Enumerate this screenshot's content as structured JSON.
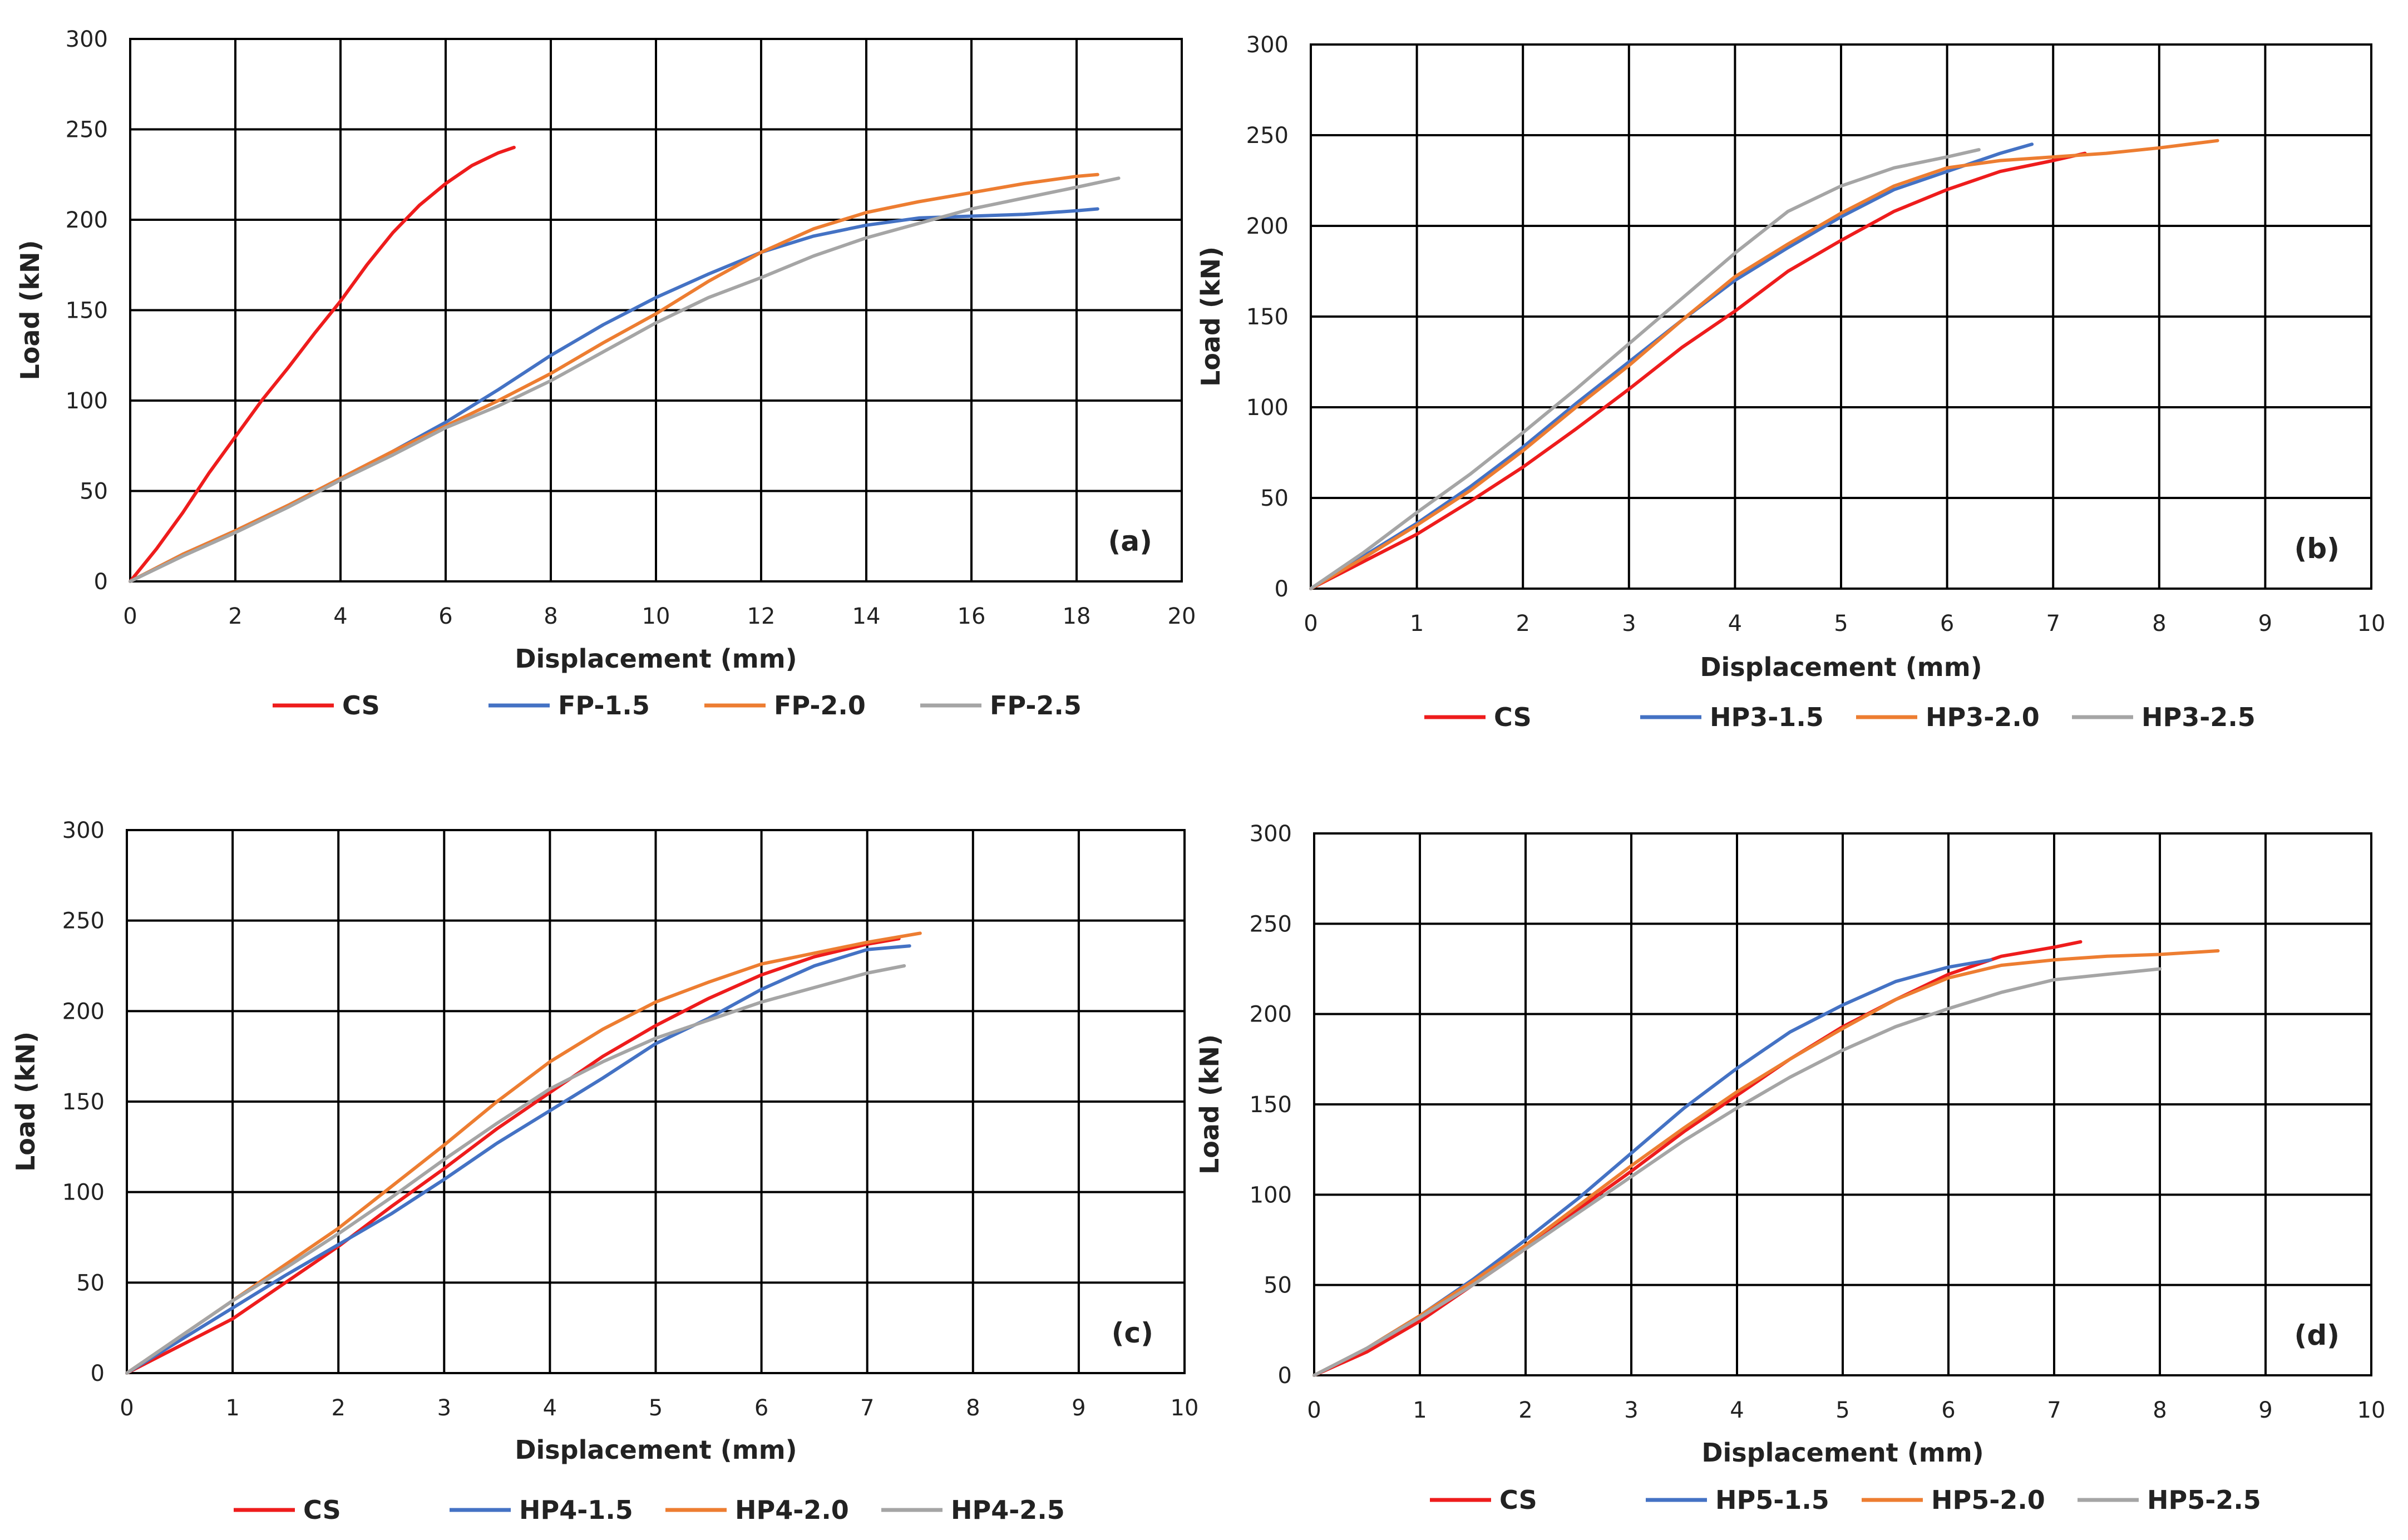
{
  "series_colors": {
    "CS": "#ee1c1c",
    "blue": "#4472c4",
    "orange": "#ed7d31",
    "gray": "#a5a5a5"
  },
  "chart_data": [
    {
      "type": "line",
      "panel_label": "(a)",
      "xlabel": "Displacement (mm)",
      "ylabel": "Load (kN)",
      "xlim": [
        0,
        20
      ],
      "ylim": [
        0,
        300
      ],
      "xticks": [
        0,
        2,
        4,
        6,
        8,
        10,
        12,
        14,
        16,
        18,
        20
      ],
      "yticks": [
        0,
        50,
        100,
        150,
        200,
        250,
        300
      ],
      "grid": true,
      "legend_position": "bottom",
      "series": [
        {
          "name": "CS",
          "color": "#ee1c1c",
          "x": [
            0,
            0.5,
            1,
            1.5,
            2,
            2.5,
            3,
            3.5,
            4,
            4.5,
            5,
            5.5,
            6,
            6.5,
            7,
            7.3
          ],
          "y": [
            0,
            18,
            38,
            60,
            80,
            100,
            118,
            137,
            155,
            175,
            193,
            208,
            220,
            230,
            237,
            240
          ]
        },
        {
          "name": "FP-1.5",
          "color": "#4472c4",
          "x": [
            0,
            1,
            2,
            3,
            4,
            5,
            6,
            7,
            8,
            9,
            10,
            11,
            12,
            13,
            14,
            15,
            16,
            17,
            18,
            18.4
          ],
          "y": [
            0,
            15,
            28,
            42,
            57,
            72,
            88,
            106,
            125,
            142,
            157,
            170,
            182,
            191,
            197,
            201,
            202,
            203,
            205,
            206
          ]
        },
        {
          "name": "FP-2.0",
          "color": "#ed7d31",
          "x": [
            0,
            1,
            2,
            3,
            4,
            5,
            6,
            7,
            8,
            9,
            10,
            11,
            12,
            13,
            14,
            15,
            16,
            17,
            18,
            18.4
          ],
          "y": [
            0,
            15,
            28,
            42,
            57,
            72,
            86,
            100,
            115,
            132,
            148,
            166,
            182,
            195,
            204,
            210,
            215,
            220,
            224,
            225
          ]
        },
        {
          "name": "FP-2.5",
          "color": "#a5a5a5",
          "x": [
            0,
            1,
            2,
            3,
            4,
            5,
            6,
            7,
            8,
            9,
            10,
            11,
            12,
            13,
            14,
            15,
            16,
            17,
            18,
            18.8
          ],
          "y": [
            0,
            14,
            27,
            41,
            56,
            70,
            85,
            97,
            111,
            127,
            143,
            157,
            168,
            180,
            190,
            198,
            206,
            212,
            218,
            223
          ]
        }
      ]
    },
    {
      "type": "line",
      "panel_label": "(b)",
      "xlabel": "Displacement (mm)",
      "ylabel": "Load (kN)",
      "xlim": [
        0,
        10
      ],
      "ylim": [
        0,
        300
      ],
      "xticks": [
        0,
        1,
        2,
        3,
        4,
        5,
        6,
        7,
        8,
        9,
        10
      ],
      "yticks": [
        0,
        50,
        100,
        150,
        200,
        250,
        300
      ],
      "grid": true,
      "legend_position": "bottom",
      "series": [
        {
          "name": "CS",
          "color": "#ee1c1c",
          "x": [
            0,
            0.5,
            1,
            1.5,
            2,
            2.5,
            3,
            3.5,
            4,
            4.5,
            5,
            5.5,
            6,
            6.5,
            7,
            7.3
          ],
          "y": [
            0,
            15,
            30,
            48,
            67,
            88,
            110,
            133,
            153,
            175,
            192,
            208,
            220,
            230,
            236,
            240
          ]
        },
        {
          "name": "HP3-1.5",
          "color": "#4472c4",
          "x": [
            0,
            0.5,
            1,
            1.5,
            2,
            2.5,
            3,
            3.5,
            4,
            4.5,
            5,
            5.5,
            6,
            6.5,
            6.8
          ],
          "y": [
            0,
            18,
            36,
            56,
            78,
            102,
            125,
            148,
            170,
            188,
            205,
            220,
            230,
            240,
            245
          ]
        },
        {
          "name": "HP3-2.0",
          "color": "#ed7d31",
          "x": [
            0,
            0.5,
            1,
            1.5,
            2,
            2.5,
            3,
            3.5,
            4,
            4.5,
            5,
            5.5,
            6,
            6.5,
            7,
            7.5,
            8,
            8.55
          ],
          "y": [
            0,
            17,
            35,
            54,
            76,
            100,
            123,
            148,
            172,
            190,
            207,
            222,
            232,
            236,
            238,
            240,
            243,
            247
          ]
        },
        {
          "name": "HP3-2.5",
          "color": "#a5a5a5",
          "x": [
            0,
            0.5,
            1,
            1.5,
            2,
            2.5,
            3,
            3.5,
            4,
            4.5,
            5,
            5.5,
            6,
            6.3
          ],
          "y": [
            0,
            20,
            42,
            63,
            86,
            110,
            135,
            160,
            185,
            208,
            222,
            232,
            238,
            242
          ]
        }
      ]
    },
    {
      "type": "line",
      "panel_label": "(c)",
      "xlabel": "Displacement (mm)",
      "ylabel": "Load (kN)",
      "xlim": [
        0,
        10
      ],
      "ylim": [
        0,
        300
      ],
      "xticks": [
        0,
        1,
        2,
        3,
        4,
        5,
        6,
        7,
        8,
        9,
        10
      ],
      "yticks": [
        0,
        50,
        100,
        150,
        200,
        250,
        300
      ],
      "grid": true,
      "legend_position": "bottom",
      "series": [
        {
          "name": "CS",
          "color": "#ee1c1c",
          "x": [
            0,
            0.5,
            1,
            1.5,
            2,
            2.5,
            3,
            3.5,
            4,
            4.5,
            5,
            5.5,
            6,
            6.5,
            7,
            7.3
          ],
          "y": [
            0,
            15,
            30,
            50,
            70,
            92,
            113,
            135,
            155,
            175,
            192,
            207,
            220,
            230,
            237,
            240
          ]
        },
        {
          "name": "HP4-1.5",
          "color": "#4472c4",
          "x": [
            0,
            0.5,
            1,
            1.5,
            2,
            2.5,
            3,
            3.5,
            4,
            4.5,
            5,
            5.5,
            6,
            6.5,
            7,
            7.4
          ],
          "y": [
            0,
            18,
            36,
            54,
            71,
            88,
            107,
            127,
            145,
            163,
            182,
            196,
            212,
            225,
            234,
            236
          ]
        },
        {
          "name": "HP4-2.0",
          "color": "#ed7d31",
          "x": [
            0,
            0.5,
            1,
            1.5,
            2,
            2.5,
            3,
            3.5,
            4,
            4.5,
            5,
            5.5,
            6,
            6.5,
            7,
            7.5
          ],
          "y": [
            0,
            20,
            40,
            60,
            80,
            103,
            126,
            150,
            172,
            190,
            205,
            216,
            226,
            232,
            238,
            243
          ]
        },
        {
          "name": "HP4-2.5",
          "color": "#a5a5a5",
          "x": [
            0,
            0.5,
            1,
            1.5,
            2,
            2.5,
            3,
            3.5,
            4,
            4.5,
            5,
            5.5,
            6,
            6.5,
            7,
            7.35
          ],
          "y": [
            0,
            20,
            40,
            58,
            77,
            97,
            118,
            138,
            157,
            172,
            185,
            195,
            205,
            213,
            221,
            225
          ]
        }
      ]
    },
    {
      "type": "line",
      "panel_label": "(d)",
      "xlabel": "Displacement (mm)",
      "ylabel": "Load (kN)",
      "xlim": [
        0,
        10
      ],
      "ylim": [
        0,
        300
      ],
      "xticks": [
        0,
        1,
        2,
        3,
        4,
        5,
        6,
        7,
        8,
        9,
        10
      ],
      "yticks": [
        0,
        50,
        100,
        150,
        200,
        250,
        300
      ],
      "grid": true,
      "legend_position": "bottom",
      "series": [
        {
          "name": "CS",
          "color": "#ee1c1c",
          "x": [
            0,
            0.5,
            1,
            1.5,
            2,
            2.5,
            3,
            3.5,
            4,
            4.5,
            5,
            5.5,
            6,
            6.5,
            7,
            7.25
          ],
          "y": [
            0,
            13,
            30,
            50,
            70,
            92,
            113,
            135,
            155,
            175,
            193,
            208,
            222,
            232,
            237,
            240
          ]
        },
        {
          "name": "HP5-1.5",
          "color": "#4472c4",
          "x": [
            0,
            0.5,
            1,
            1.5,
            2,
            2.5,
            3,
            3.5,
            4,
            4.5,
            5,
            5.5,
            6,
            6.4
          ],
          "y": [
            0,
            15,
            33,
            53,
            75,
            98,
            123,
            148,
            170,
            190,
            205,
            218,
            226,
            230
          ]
        },
        {
          "name": "HP5-2.0",
          "color": "#ed7d31",
          "x": [
            0,
            0.5,
            1,
            1.5,
            2,
            2.5,
            3,
            3.5,
            4,
            4.5,
            5,
            5.5,
            6,
            6.5,
            7,
            7.5,
            8,
            8.55
          ],
          "y": [
            0,
            15,
            33,
            52,
            72,
            94,
            116,
            137,
            157,
            175,
            192,
            208,
            220,
            227,
            230,
            232,
            233,
            235
          ]
        },
        {
          "name": "HP5-2.5",
          "color": "#a5a5a5",
          "x": [
            0,
            0.5,
            1,
            1.5,
            2,
            2.5,
            3,
            3.5,
            4,
            4.5,
            5,
            5.5,
            6,
            6.5,
            7,
            7.5,
            8
          ],
          "y": [
            0,
            15,
            32,
            50,
            70,
            90,
            110,
            130,
            148,
            165,
            180,
            193,
            203,
            212,
            219,
            222,
            225
          ]
        }
      ]
    }
  ]
}
